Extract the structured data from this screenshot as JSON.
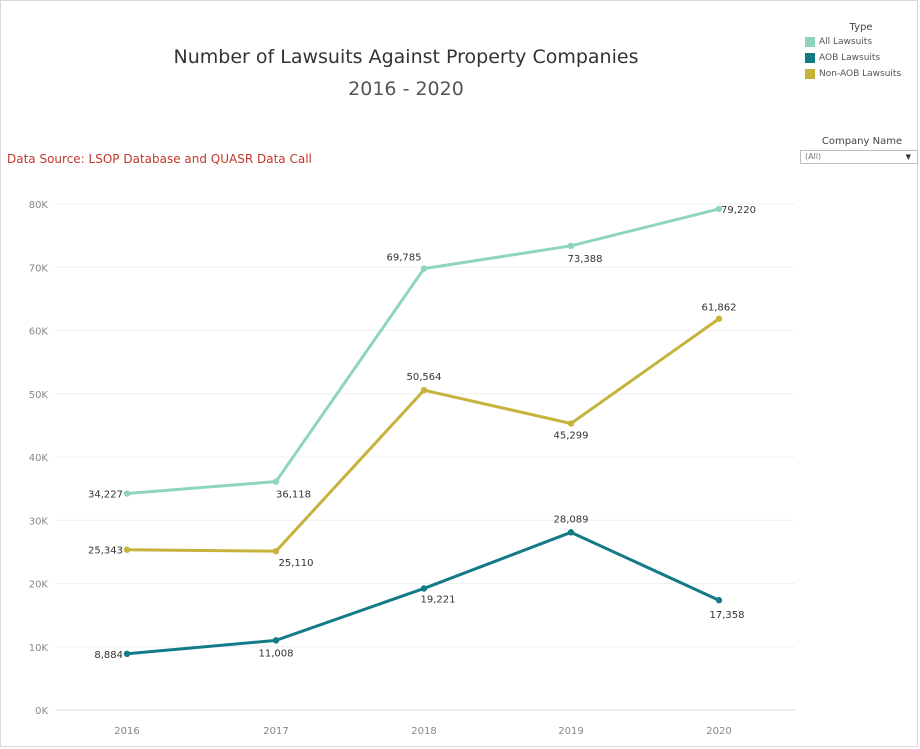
{
  "header": {
    "title": "Number of Lawsuits Against Property Companies",
    "subtitle": "2016 - 2020",
    "source": "Data Source: LSOP Database and QUASR Data Call"
  },
  "legend": {
    "title": "Type",
    "items": [
      {
        "label": "All Lawsuits",
        "color": "#8fd3c1"
      },
      {
        "label": "AOB Lawsuits",
        "color": "#137a87"
      },
      {
        "label": "Non-AOB Lawsuits",
        "color": "#c6b33c"
      }
    ]
  },
  "filter": {
    "title": "Company Name",
    "value": "(All)"
  },
  "chart_data": {
    "type": "line",
    "categories": [
      "2016",
      "2017",
      "2018",
      "2019",
      "2020"
    ],
    "ylim": [
      0,
      80000
    ],
    "yticks": [
      0,
      10000,
      20000,
      30000,
      40000,
      50000,
      60000,
      70000,
      80000
    ],
    "ytick_labels": [
      "0K",
      "10K",
      "20K",
      "30K",
      "40K",
      "50K",
      "60K",
      "70K",
      "80K"
    ],
    "grid": true,
    "legend_position": "top-right",
    "series": [
      {
        "name": "All Lawsuits",
        "color": "#8fd3c1",
        "values": [
          34227,
          36118,
          69785,
          73388,
          79220
        ],
        "labels": [
          "34,227",
          "36,118",
          "69,785",
          "73,388",
          "79,220"
        ]
      },
      {
        "name": "AOB Lawsuits",
        "color": "#137a87",
        "values": [
          8884,
          11008,
          19221,
          28089,
          17358
        ],
        "labels": [
          "8,884",
          "11,008",
          "19,221",
          "28,089",
          "17,358"
        ]
      },
      {
        "name": "Non-AOB Lawsuits",
        "color": "#c6b33c",
        "values": [
          25343,
          25110,
          50564,
          45299,
          61862
        ],
        "labels": [
          "25,343",
          "25,110",
          "50,564",
          "45,299",
          "61,862"
        ]
      }
    ]
  }
}
